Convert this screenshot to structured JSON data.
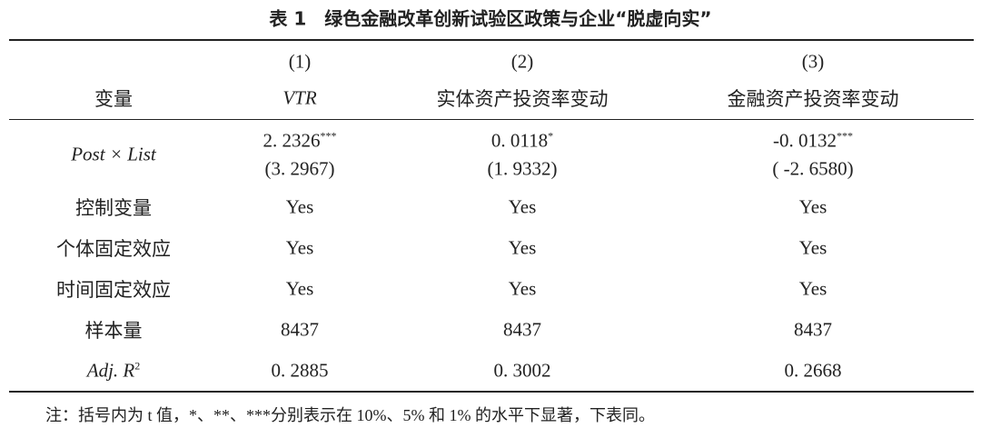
{
  "title": "表 1　绿色金融改革创新试验区政策与企业“脱虚向实”",
  "table": {
    "header": {
      "numbers": [
        "(1)",
        "(2)",
        "(3)"
      ],
      "label": "变量",
      "columns": [
        "VTR",
        "实体资产投资率变动",
        "金融资产投资率变动"
      ]
    },
    "rows": [
      {
        "label": "Post × List",
        "cells": [
          {
            "value": "2. 2326",
            "stars": "***",
            "t": "(3. 2967)"
          },
          {
            "value": "0. 0118",
            "stars": "*",
            "t": "(1. 9332)"
          },
          {
            "value": "-0. 0132",
            "stars": "***",
            "t": "( -2. 6580)"
          }
        ]
      },
      {
        "label": "控制变量",
        "cells": [
          "Yes",
          "Yes",
          "Yes"
        ]
      },
      {
        "label": "个体固定效应",
        "cells": [
          "Yes",
          "Yes",
          "Yes"
        ]
      },
      {
        "label": "时间固定效应",
        "cells": [
          "Yes",
          "Yes",
          "Yes"
        ]
      },
      {
        "label": "样本量",
        "cells": [
          "8437",
          "8437",
          "8437"
        ]
      },
      {
        "label": "Adj.  R",
        "label_sup": "2",
        "cells": [
          "0. 2885",
          "0. 3002",
          "0. 2668"
        ]
      }
    ]
  },
  "note": "注：括号内为 t 值，*、**、***分别表示在 10%、5% 和 1% 的水平下显著，下表同。"
}
